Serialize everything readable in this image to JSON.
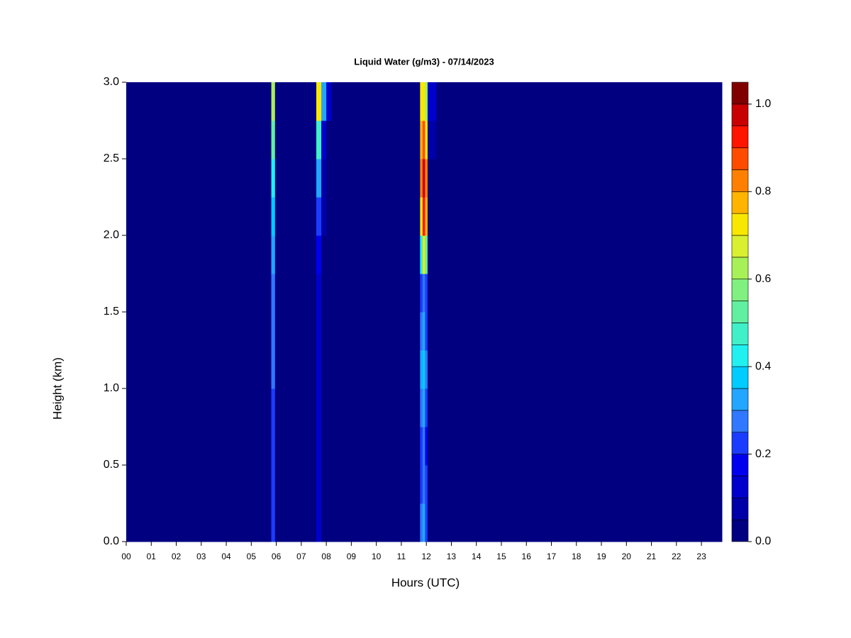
{
  "chart_data": {
    "type": "heatmap",
    "title": "Liquid Water (g/m3) - 07/14/2023",
    "xlabel": "Hours (UTC)",
    "ylabel": "Height (km)",
    "xbins": [
      0,
      5.8,
      5.95,
      7.6,
      7.8,
      8.0,
      8.2,
      11.75,
      11.85,
      11.95,
      12.05,
      12.4,
      23.82
    ],
    "ybins": [
      0,
      0.25,
      0.5,
      0.75,
      1.0,
      1.25,
      1.5,
      1.75,
      2.0,
      2.25,
      2.5,
      2.75,
      3.0
    ],
    "z": [
      [
        0.02,
        0.2,
        0.02,
        0.1,
        0.03,
        0.02,
        0.02,
        0.25,
        0.3,
        0.2,
        0.02,
        0.02
      ],
      [
        0.02,
        0.2,
        0.02,
        0.1,
        0.03,
        0.02,
        0.02,
        0.2,
        0.25,
        0.2,
        0.02,
        0.02
      ],
      [
        0.02,
        0.2,
        0.02,
        0.1,
        0.03,
        0.02,
        0.02,
        0.2,
        0.25,
        0.15,
        0.02,
        0.02
      ],
      [
        0.02,
        0.2,
        0.02,
        0.1,
        0.03,
        0.02,
        0.02,
        0.25,
        0.3,
        0.2,
        0.02,
        0.02
      ],
      [
        0.02,
        0.25,
        0.02,
        0.1,
        0.03,
        0.02,
        0.02,
        0.3,
        0.35,
        0.25,
        0.02,
        0.02
      ],
      [
        0.02,
        0.25,
        0.02,
        0.12,
        0.03,
        0.02,
        0.02,
        0.25,
        0.3,
        0.2,
        0.02,
        0.02
      ],
      [
        0.02,
        0.25,
        0.02,
        0.12,
        0.03,
        0.02,
        0.02,
        0.2,
        0.25,
        0.2,
        0.02,
        0.02
      ],
      [
        0.02,
        0.3,
        0.02,
        0.15,
        0.04,
        0.02,
        0.02,
        0.4,
        0.7,
        0.5,
        0.02,
        0.02
      ],
      [
        0.02,
        0.35,
        0.02,
        0.2,
        0.05,
        0.02,
        0.02,
        0.7,
        0.9,
        0.75,
        0.03,
        0.02
      ],
      [
        0.02,
        0.4,
        0.02,
        0.3,
        0.06,
        0.02,
        0.02,
        0.8,
        0.95,
        0.8,
        0.03,
        0.02
      ],
      [
        0.02,
        0.5,
        0.02,
        0.45,
        0.1,
        0.03,
        0.02,
        0.75,
        0.85,
        0.7,
        0.05,
        0.02
      ],
      [
        0.02,
        0.6,
        0.02,
        0.7,
        0.3,
        0.1,
        0.02,
        0.7,
        0.7,
        0.6,
        0.1,
        0.02
      ]
    ],
    "levels": [
      0,
      0.05,
      0.1,
      0.15,
      0.2,
      0.25,
      0.3,
      0.35,
      0.4,
      0.45,
      0.5,
      0.55,
      0.6,
      0.65,
      0.7,
      0.75,
      0.8,
      0.85,
      0.9,
      0.95,
      1.0,
      1.05
    ],
    "colors": [
      "#000080",
      "#0000a8",
      "#0000cc",
      "#0000ee",
      "#1a3cff",
      "#2f78ff",
      "#22a6ff",
      "#00ccff",
      "#20f0f0",
      "#40f0c8",
      "#60f0a0",
      "#80f080",
      "#a8f058",
      "#d8f030",
      "#f8e800",
      "#ffb400",
      "#ff8000",
      "#ff4c00",
      "#ff1400",
      "#c80000",
      "#800000"
    ],
    "xlim": [
      0,
      23.82
    ],
    "ylim": [
      0,
      3.0
    ],
    "xticks": [
      {
        "value": 0,
        "label": "00"
      },
      {
        "value": 1,
        "label": "01"
      },
      {
        "value": 2,
        "label": "02"
      },
      {
        "value": 3,
        "label": "03"
      },
      {
        "value": 4,
        "label": "04"
      },
      {
        "value": 5,
        "label": "05"
      },
      {
        "value": 6,
        "label": "06"
      },
      {
        "value": 7,
        "label": "07"
      },
      {
        "value": 8,
        "label": "08"
      },
      {
        "value": 9,
        "label": "09"
      },
      {
        "value": 10,
        "label": "10"
      },
      {
        "value": 11,
        "label": "11"
      },
      {
        "value": 12,
        "label": "12"
      },
      {
        "value": 13,
        "label": "13"
      },
      {
        "value": 14,
        "label": "14"
      },
      {
        "value": 15,
        "label": "15"
      },
      {
        "value": 16,
        "label": "16"
      },
      {
        "value": 17,
        "label": "17"
      },
      {
        "value": 18,
        "label": "18"
      },
      {
        "value": 19,
        "label": "19"
      },
      {
        "value": 20,
        "label": "20"
      },
      {
        "value": 21,
        "label": "21"
      },
      {
        "value": 22,
        "label": "22"
      },
      {
        "value": 23,
        "label": "23"
      }
    ],
    "yticks": [
      {
        "value": 0,
        "label": "0.0"
      },
      {
        "value": 0.5,
        "label": "0.5"
      },
      {
        "value": 1.0,
        "label": "1.0"
      },
      {
        "value": 1.5,
        "label": "1.5"
      },
      {
        "value": 2.0,
        "label": "2.0"
      },
      {
        "value": 2.5,
        "label": "2.5"
      },
      {
        "value": 3.0,
        "label": "3.0"
      }
    ],
    "cticks": [
      {
        "value": 0,
        "label": "0.0"
      },
      {
        "value": 0.2,
        "label": "0.2"
      },
      {
        "value": 0.4,
        "label": "0.4"
      },
      {
        "value": 0.6,
        "label": "0.6"
      },
      {
        "value": 0.8,
        "label": "0.8"
      },
      {
        "value": 1.0,
        "label": "1.0"
      }
    ]
  }
}
